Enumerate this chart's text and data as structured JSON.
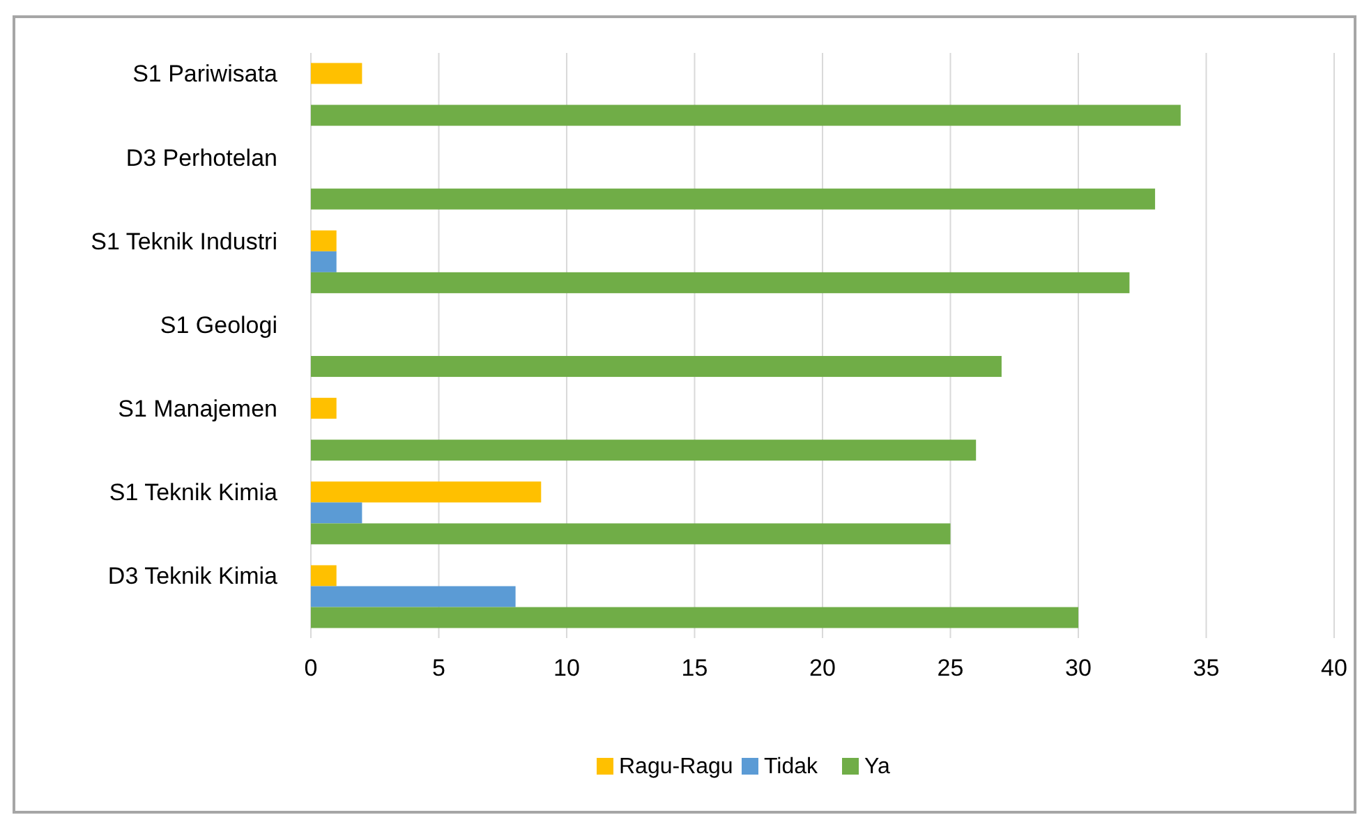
{
  "chart_data": {
    "type": "bar",
    "orientation": "horizontal",
    "categories": [
      "S1 Pariwisata",
      "D3 Perhotelan",
      "S1 Teknik Industri",
      "S1 Geologi",
      "S1 Manajemen",
      "S1 Teknik Kimia",
      "D3 Teknik Kimia"
    ],
    "series": [
      {
        "name": "Ragu-Ragu",
        "color": "#ffc000",
        "values": [
          2,
          0,
          1,
          0,
          1,
          9,
          1
        ]
      },
      {
        "name": "Tidak",
        "color": "#5b9bd5",
        "values": [
          0,
          0,
          1,
          0,
          0,
          2,
          8
        ]
      },
      {
        "name": "Ya",
        "color": "#70ad47",
        "values": [
          34,
          33,
          32,
          27,
          26,
          25,
          30
        ]
      }
    ],
    "xlim": [
      0,
      40
    ],
    "xticks": [
      0,
      5,
      10,
      15,
      20,
      25,
      30,
      35,
      40
    ],
    "grid": "x",
    "legend": "bottom"
  }
}
